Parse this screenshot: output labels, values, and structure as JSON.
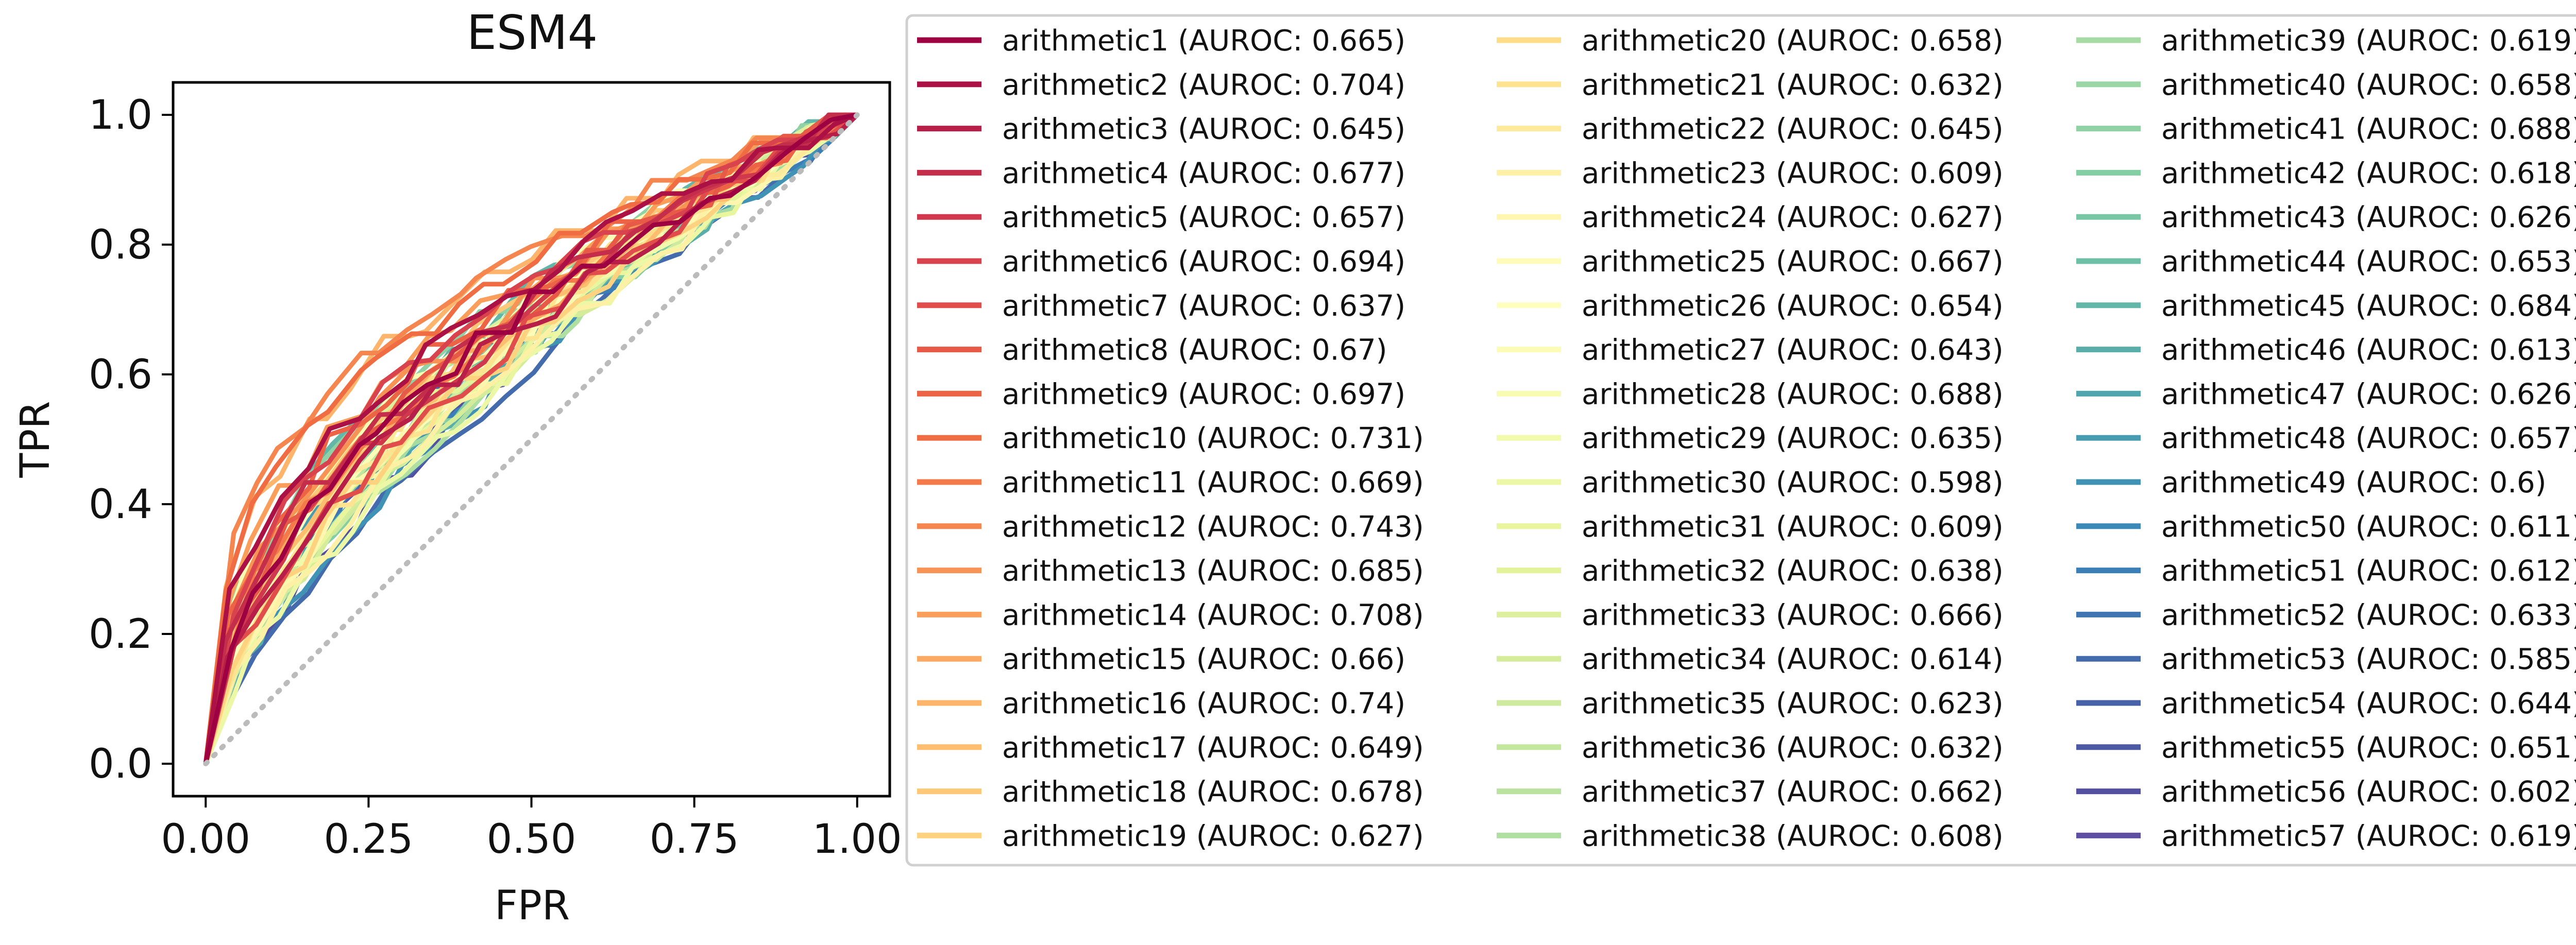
{
  "chart_data": {
    "type": "line",
    "title": "ESM4",
    "xlabel": "FPR",
    "ylabel": "TPR",
    "xlim": [
      -0.05,
      1.05
    ],
    "ylim": [
      -0.05,
      1.05
    ],
    "xticks": [
      0.0,
      0.25,
      0.5,
      0.75,
      1.0
    ],
    "xtick_labels": [
      "0.00",
      "0.25",
      "0.50",
      "0.75",
      "1.00"
    ],
    "yticks": [
      0.0,
      0.2,
      0.4,
      0.6,
      0.8,
      1.0
    ],
    "ytick_labels": [
      "0.0",
      "0.2",
      "0.4",
      "0.6",
      "0.8",
      "1.0"
    ],
    "grid": false,
    "legend_position": "right, outside plot, 3 columns",
    "colormap": "Spectral",
    "diagonal": {
      "x": [
        0,
        1
      ],
      "y": [
        0,
        1
      ],
      "style": "dotted",
      "color": "#bbbbbb"
    },
    "series": [
      {
        "name": "arithmetic1 (AUROC: 0.665)",
        "color": "#9e0142",
        "auroc": 0.665
      },
      {
        "name": "arithmetic2 (AUROC: 0.704)",
        "color": "#ab1145",
        "auroc": 0.704
      },
      {
        "name": "arithmetic3 (AUROC: 0.645)",
        "color": "#b81f48",
        "auroc": 0.645
      },
      {
        "name": "arithmetic4 (AUROC: 0.677)",
        "color": "#c42e4b",
        "auroc": 0.677
      },
      {
        "name": "arithmetic5 (AUROC: 0.657)",
        "color": "#cf384d",
        "auroc": 0.657
      },
      {
        "name": "arithmetic6 (AUROC: 0.694)",
        "color": "#d8434e",
        "auroc": 0.694
      },
      {
        "name": "arithmetic7 (AUROC: 0.637)",
        "color": "#e14d4b",
        "auroc": 0.637
      },
      {
        "name": "arithmetic8 (AUROC: 0.67)",
        "color": "#e75a47",
        "auroc": 0.67
      },
      {
        "name": "arithmetic9 (AUROC: 0.697)",
        "color": "#ec6445",
        "auroc": 0.697
      },
      {
        "name": "arithmetic10 (AUROC: 0.731)",
        "color": "#f06d43",
        "auroc": 0.731
      },
      {
        "name": "arithmetic11 (AUROC: 0.669)",
        "color": "#f47a4b",
        "auroc": 0.669
      },
      {
        "name": "arithmetic12 (AUROC: 0.743)",
        "color": "#f68650",
        "auroc": 0.743
      },
      {
        "name": "arithmetic13 (AUROC: 0.685)",
        "color": "#f89356",
        "auroc": 0.685
      },
      {
        "name": "arithmetic14 (AUROC: 0.708)",
        "color": "#fa9e5c",
        "auroc": 0.708
      },
      {
        "name": "arithmetic15 (AUROC: 0.66)",
        "color": "#fca963",
        "auroc": 0.66
      },
      {
        "name": "arithmetic16 (AUROC: 0.74)",
        "color": "#fdb46b",
        "auroc": 0.74
      },
      {
        "name": "arithmetic17 (AUROC: 0.649)",
        "color": "#fdbe70",
        "auroc": 0.649
      },
      {
        "name": "arithmetic18 (AUROC: 0.678)",
        "color": "#fdc878",
        "auroc": 0.678
      },
      {
        "name": "arithmetic19 (AUROC: 0.627)",
        "color": "#fed27f",
        "auroc": 0.627
      },
      {
        "name": "arithmetic20 (AUROC: 0.658)",
        "color": "#fedc88",
        "auroc": 0.658
      },
      {
        "name": "arithmetic21 (AUROC: 0.632)",
        "color": "#fee391",
        "auroc": 0.632
      },
      {
        "name": "arithmetic22 (AUROC: 0.645)",
        "color": "#feea9b",
        "auroc": 0.645
      },
      {
        "name": "arithmetic23 (AUROC: 0.609)",
        "color": "#fef0a5",
        "auroc": 0.609
      },
      {
        "name": "arithmetic24 (AUROC: 0.627)",
        "color": "#fff6af",
        "auroc": 0.627
      },
      {
        "name": "arithmetic25 (AUROC: 0.667)",
        "color": "#fffbb8",
        "auroc": 0.667
      },
      {
        "name": "arithmetic26 (AUROC: 0.654)",
        "color": "#fefebe",
        "auroc": 0.654
      },
      {
        "name": "arithmetic27 (AUROC: 0.643)",
        "color": "#fbfdb7",
        "auroc": 0.643
      },
      {
        "name": "arithmetic28 (AUROC: 0.688)",
        "color": "#f7fcb2",
        "auroc": 0.688
      },
      {
        "name": "arithmetic29 (AUROC: 0.635)",
        "color": "#f2faac",
        "auroc": 0.635
      },
      {
        "name": "arithmetic30 (AUROC: 0.598)",
        "color": "#edf8a6",
        "auroc": 0.598
      },
      {
        "name": "arithmetic31 (AUROC: 0.609)",
        "color": "#e9f69e",
        "auroc": 0.609
      },
      {
        "name": "arithmetic32 (AUROC: 0.638)",
        "color": "#e3f399",
        "auroc": 0.638
      },
      {
        "name": "arithmetic33 (AUROC: 0.666)",
        "color": "#dcf09d",
        "auroc": 0.666
      },
      {
        "name": "arithmetic34 (AUROC: 0.614)",
        "color": "#d5ed9b",
        "auroc": 0.614
      },
      {
        "name": "arithmetic35 (AUROC: 0.623)",
        "color": "#cdea9e",
        "auroc": 0.623
      },
      {
        "name": "arithmetic36 (AUROC: 0.632)",
        "color": "#c4e79e",
        "auroc": 0.632
      },
      {
        "name": "arithmetic37 (AUROC: 0.662)",
        "color": "#bae3a0",
        "auroc": 0.662
      },
      {
        "name": "arithmetic38 (AUROC: 0.608)",
        "color": "#b0dfa2",
        "auroc": 0.608
      },
      {
        "name": "arithmetic39 (AUROC: 0.619)",
        "color": "#a6dba4",
        "auroc": 0.619
      },
      {
        "name": "arithmetic40 (AUROC: 0.658)",
        "color": "#9bd7a4",
        "auroc": 0.658
      },
      {
        "name": "arithmetic41 (AUROC: 0.688)",
        "color": "#90d2a4",
        "auroc": 0.688
      },
      {
        "name": "arithmetic42 (AUROC: 0.618)",
        "color": "#84cea4",
        "auroc": 0.618
      },
      {
        "name": "arithmetic43 (AUROC: 0.626)",
        "color": "#78c6a4",
        "auroc": 0.626
      },
      {
        "name": "arithmetic44 (AUROC: 0.653)",
        "color": "#6dbfa5",
        "auroc": 0.653
      },
      {
        "name": "arithmetic45 (AUROC: 0.684)",
        "color": "#63b7a8",
        "auroc": 0.684
      },
      {
        "name": "arithmetic46 (AUROC: 0.613)",
        "color": "#59aeaa",
        "auroc": 0.613
      },
      {
        "name": "arithmetic47 (AUROC: 0.626)",
        "color": "#50a6ae",
        "auroc": 0.626
      },
      {
        "name": "arithmetic48 (AUROC: 0.657)",
        "color": "#489cb2",
        "auroc": 0.657
      },
      {
        "name": "arithmetic49 (AUROC: 0.6)",
        "color": "#4193b5",
        "auroc": 0.6
      },
      {
        "name": "arithmetic50 (AUROC: 0.611)",
        "color": "#3a89b7",
        "auroc": 0.611
      },
      {
        "name": "arithmetic51 (AUROC: 0.612)",
        "color": "#3b7fb6",
        "auroc": 0.612
      },
      {
        "name": "arithmetic52 (AUROC: 0.633)",
        "color": "#3f76b2",
        "auroc": 0.633
      },
      {
        "name": "arithmetic53 (AUROC: 0.585)",
        "color": "#446cad",
        "auroc": 0.585
      },
      {
        "name": "arithmetic54 (AUROC: 0.644)",
        "color": "#4862a9",
        "auroc": 0.644
      },
      {
        "name": "arithmetic55 (AUROC: 0.651)",
        "color": "#4d59a5",
        "auroc": 0.651
      },
      {
        "name": "arithmetic56 (AUROC: 0.602)",
        "color": "#534fa1",
        "auroc": 0.602
      },
      {
        "name": "arithmetic57 (AUROC: 0.619)",
        "color": "#5e4fa2",
        "auroc": 0.619
      }
    ]
  }
}
